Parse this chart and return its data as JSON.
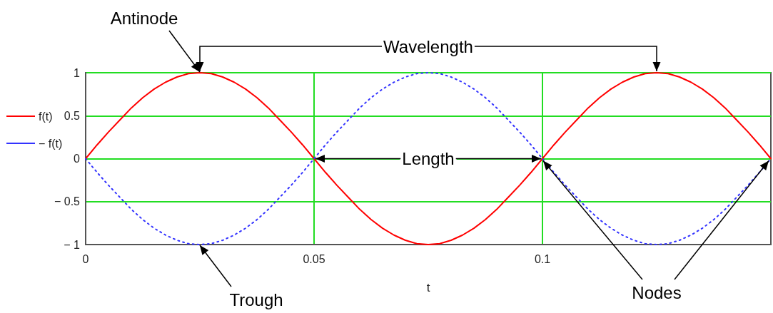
{
  "chart_data": {
    "type": "line",
    "xlabel": "t",
    "legend": "left",
    "grid": true,
    "marker": "none",
    "x": [
      0,
      0.0025,
      0.005,
      0.0075,
      0.01,
      0.0125,
      0.015,
      0.0175,
      0.02,
      0.0225,
      0.025,
      0.0275,
      0.03,
      0.0325,
      0.035,
      0.0375,
      0.04,
      0.0425,
      0.045,
      0.0475,
      0.05,
      0.0525,
      0.055,
      0.0575,
      0.06,
      0.0625,
      0.065,
      0.0675,
      0.07,
      0.0725,
      0.075,
      0.0775,
      0.08,
      0.0825,
      0.085,
      0.0875,
      0.09,
      0.0925,
      0.095,
      0.0975,
      0.1,
      0.1025,
      0.105,
      0.1075,
      0.11,
      0.1125,
      0.115,
      0.1175,
      0.12,
      0.1225,
      0.125,
      0.1275,
      0.13,
      0.1325,
      0.135,
      0.1375,
      0.14,
      0.1425,
      0.145,
      0.1475,
      0.15
    ],
    "series": [
      {
        "name": "f(t)",
        "color": "#ff0000",
        "line_style": "solid",
        "values": [
          0,
          0.16,
          0.31,
          0.45,
          0.59,
          0.71,
          0.81,
          0.89,
          0.95,
          0.99,
          1,
          0.99,
          0.95,
          0.89,
          0.81,
          0.71,
          0.59,
          0.45,
          0.31,
          0.16,
          0,
          -0.16,
          -0.31,
          -0.45,
          -0.59,
          -0.71,
          -0.81,
          -0.89,
          -0.95,
          -0.99,
          -1,
          -0.99,
          -0.95,
          -0.89,
          -0.81,
          -0.71,
          -0.59,
          -0.45,
          -0.31,
          -0.16,
          0,
          0.16,
          0.31,
          0.45,
          0.59,
          0.71,
          0.81,
          0.89,
          0.95,
          0.99,
          1,
          0.99,
          0.95,
          0.89,
          0.81,
          0.71,
          0.59,
          0.45,
          0.31,
          0.16,
          0
        ]
      },
      {
        "name": "− f(t)",
        "color": "#3333ff",
        "line_style": "dotted",
        "values": [
          0,
          -0.16,
          -0.31,
          -0.45,
          -0.59,
          -0.71,
          -0.81,
          -0.89,
          -0.95,
          -0.99,
          -1,
          -0.99,
          -0.95,
          -0.89,
          -0.81,
          -0.71,
          -0.59,
          -0.45,
          -0.31,
          -0.16,
          0,
          0.16,
          0.31,
          0.45,
          0.59,
          0.71,
          0.81,
          0.89,
          0.95,
          0.99,
          1,
          0.99,
          0.95,
          0.89,
          0.81,
          0.71,
          0.59,
          0.45,
          0.31,
          0.16,
          0,
          -0.16,
          -0.31,
          -0.45,
          -0.59,
          -0.71,
          -0.81,
          -0.89,
          -0.95,
          -0.99,
          -1,
          -0.99,
          -0.95,
          -0.89,
          -0.81,
          -0.71,
          -0.59,
          -0.45,
          -0.31,
          -0.16,
          0
        ]
      }
    ],
    "xlim": [
      0,
      0.15
    ],
    "xticks": [
      0,
      0.05,
      0.1
    ],
    "ylim": [
      -1,
      1
    ],
    "yticks": [
      {
        "value": -1,
        "label": "− 1"
      },
      {
        "value": -0.5,
        "label": "− 0.5"
      },
      0,
      0.5,
      1
    ],
    "annotations": [
      {
        "text": "Antinode",
        "x": 0.025,
        "y": 1
      },
      {
        "text": "Wavelength",
        "x": 0.025,
        "y": 1
      },
      {
        "text": "Length",
        "x": 0.05,
        "y": 0
      },
      {
        "text": "Trough",
        "x": 0.025,
        "y": -1
      },
      {
        "text": "Nodes",
        "x": 0.1,
        "y": 0
      }
    ]
  }
}
